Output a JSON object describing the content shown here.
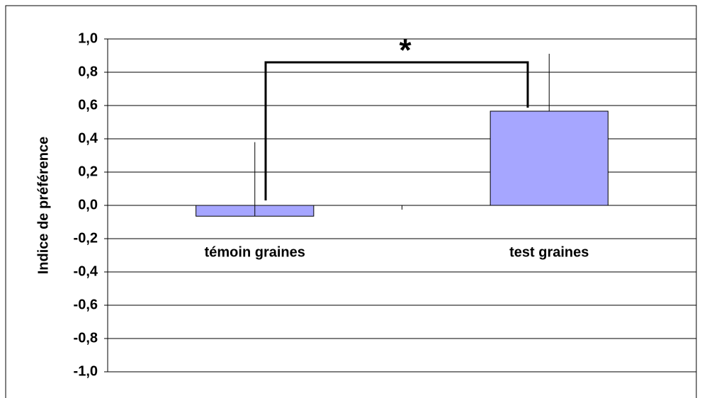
{
  "chart_data": {
    "type": "bar",
    "y_label": "Indice de préférence",
    "categories": [
      "témoin graines",
      "test graines"
    ],
    "values": [
      -0.065,
      0.566
    ],
    "errors": [
      0.445,
      0.345
    ],
    "color": "#a6a6ff",
    "annotation": "*",
    "ylim": [
      -1,
      1
    ],
    "yticks": [
      {
        "value": -1,
        "label": "-1,0"
      },
      {
        "value": -0.8,
        "label": "-0,8"
      },
      {
        "value": -0.6,
        "label": "-0,6"
      },
      {
        "value": -0.4,
        "label": "-0,4"
      },
      {
        "value": -0.2,
        "label": "-0,2"
      },
      {
        "value": 0,
        "label": "0,0"
      },
      {
        "value": 0.2,
        "label": "0,2"
      },
      {
        "value": 0.4,
        "label": "0,4"
      },
      {
        "value": 0.6,
        "label": "0,6"
      },
      {
        "value": 0.8,
        "label": "0,8"
      },
      {
        "value": 1,
        "label": "1,0"
      }
    ],
    "grid": true
  }
}
